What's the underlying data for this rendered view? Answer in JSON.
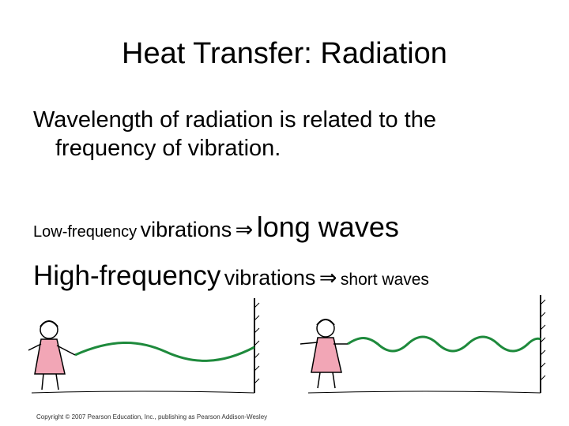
{
  "slide": {
    "title": "Heat Transfer: Radiation",
    "body": {
      "line1": "Wavelength of radiation is related to the",
      "line2": "frequency of vibration."
    },
    "low_line": {
      "part1": "Low-frequency",
      "part2": "vibrations",
      "arrow": "⇒",
      "part3": "long waves"
    },
    "high_line": {
      "part1": "High-frequency",
      "part2": "vibrations",
      "arrow": "⇒",
      "part3": "short waves"
    },
    "copyright": "Copyright © 2007 Pearson Education, Inc., publishing as Pearson Addison-Wesley"
  },
  "colors": {
    "wave": "#1e8a3c",
    "dress": "#f2a6b6",
    "outline": "#000000"
  }
}
